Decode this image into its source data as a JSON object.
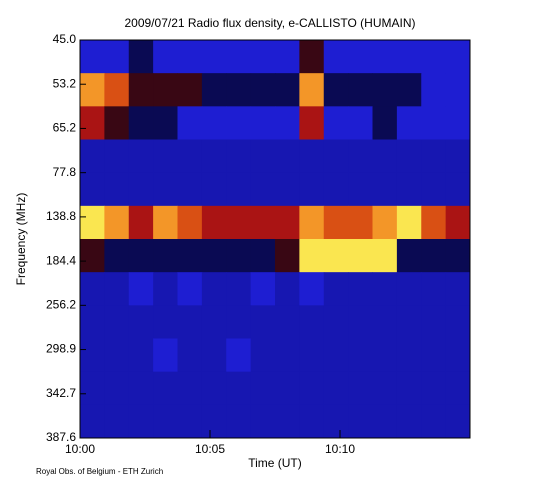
{
  "chart_data": {
    "type": "spectrogram",
    "title": "2009/07/21  Radio flux density, e-CALLISTO (HUMAIN)",
    "xlabel": "Time (UT)",
    "ylabel": "Frequency (MHz)",
    "footer": "Royal Obs. of Belgium - ETH Zurich",
    "xlim": [
      0,
      15
    ],
    "xticks": [
      {
        "value": 0,
        "label": "10:00"
      },
      {
        "value": 5,
        "label": "10:05"
      },
      {
        "value": 10,
        "label": "10:10"
      }
    ],
    "yticks": [
      {
        "value": 45,
        "label": "45.0"
      },
      {
        "value": 53.2,
        "label": "53.2"
      },
      {
        "value": 65.2,
        "label": "65.2"
      },
      {
        "value": 77.8,
        "label": "77.8"
      },
      {
        "value": 138.8,
        "label": "138.8"
      },
      {
        "value": 184.4,
        "label": "184.4"
      },
      {
        "value": 256.2,
        "label": "256.2"
      },
      {
        "value": 298.9,
        "label": "298.9"
      },
      {
        "value": 342.7,
        "label": "342.7"
      },
      {
        "value": 387.6,
        "label": "387.6"
      }
    ],
    "zlim": [
      0,
      10
    ],
    "z": [
      [
        3,
        3,
        4,
        3,
        3,
        3,
        3,
        3,
        3,
        5,
        3,
        3,
        3,
        3,
        3,
        3
      ],
      [
        8,
        7,
        5,
        5,
        5,
        4,
        4,
        4,
        4,
        8,
        4,
        4,
        4,
        4,
        3,
        3
      ],
      [
        6,
        5,
        4,
        4,
        3,
        3,
        3,
        3,
        3,
        6,
        3,
        3,
        4,
        3,
        3,
        3
      ],
      [
        2,
        2,
        2,
        2,
        2,
        2,
        2,
        2,
        2,
        2,
        2,
        2,
        2,
        2,
        2,
        2
      ],
      [
        2,
        2,
        2,
        2,
        2,
        2,
        2,
        2,
        2,
        2,
        2,
        2,
        2,
        2,
        2,
        2
      ],
      [
        9,
        8,
        6,
        8,
        7,
        6,
        6,
        6,
        6,
        8,
        7,
        7,
        8,
        9,
        7,
        6
      ],
      [
        5,
        4,
        4,
        4,
        4,
        4,
        4,
        4,
        5,
        9,
        9,
        9,
        9,
        4,
        4,
        4
      ],
      [
        2,
        2,
        3,
        2,
        3,
        2,
        2,
        3,
        2,
        3,
        2,
        2,
        2,
        2,
        2,
        2
      ],
      [
        2,
        2,
        2,
        2,
        2,
        2,
        2,
        2,
        2,
        2,
        2,
        2,
        2,
        2,
        2,
        2
      ],
      [
        2,
        2,
        2,
        3,
        2,
        2,
        3,
        2,
        2,
        2,
        2,
        2,
        2,
        2,
        2,
        2
      ],
      [
        2,
        2,
        2,
        2,
        2,
        2,
        2,
        2,
        2,
        2,
        2,
        2,
        2,
        2,
        2,
        2
      ],
      [
        2,
        2,
        2,
        2,
        2,
        2,
        2,
        2,
        2,
        2,
        2,
        2,
        2,
        2,
        2,
        2
      ]
    ]
  }
}
